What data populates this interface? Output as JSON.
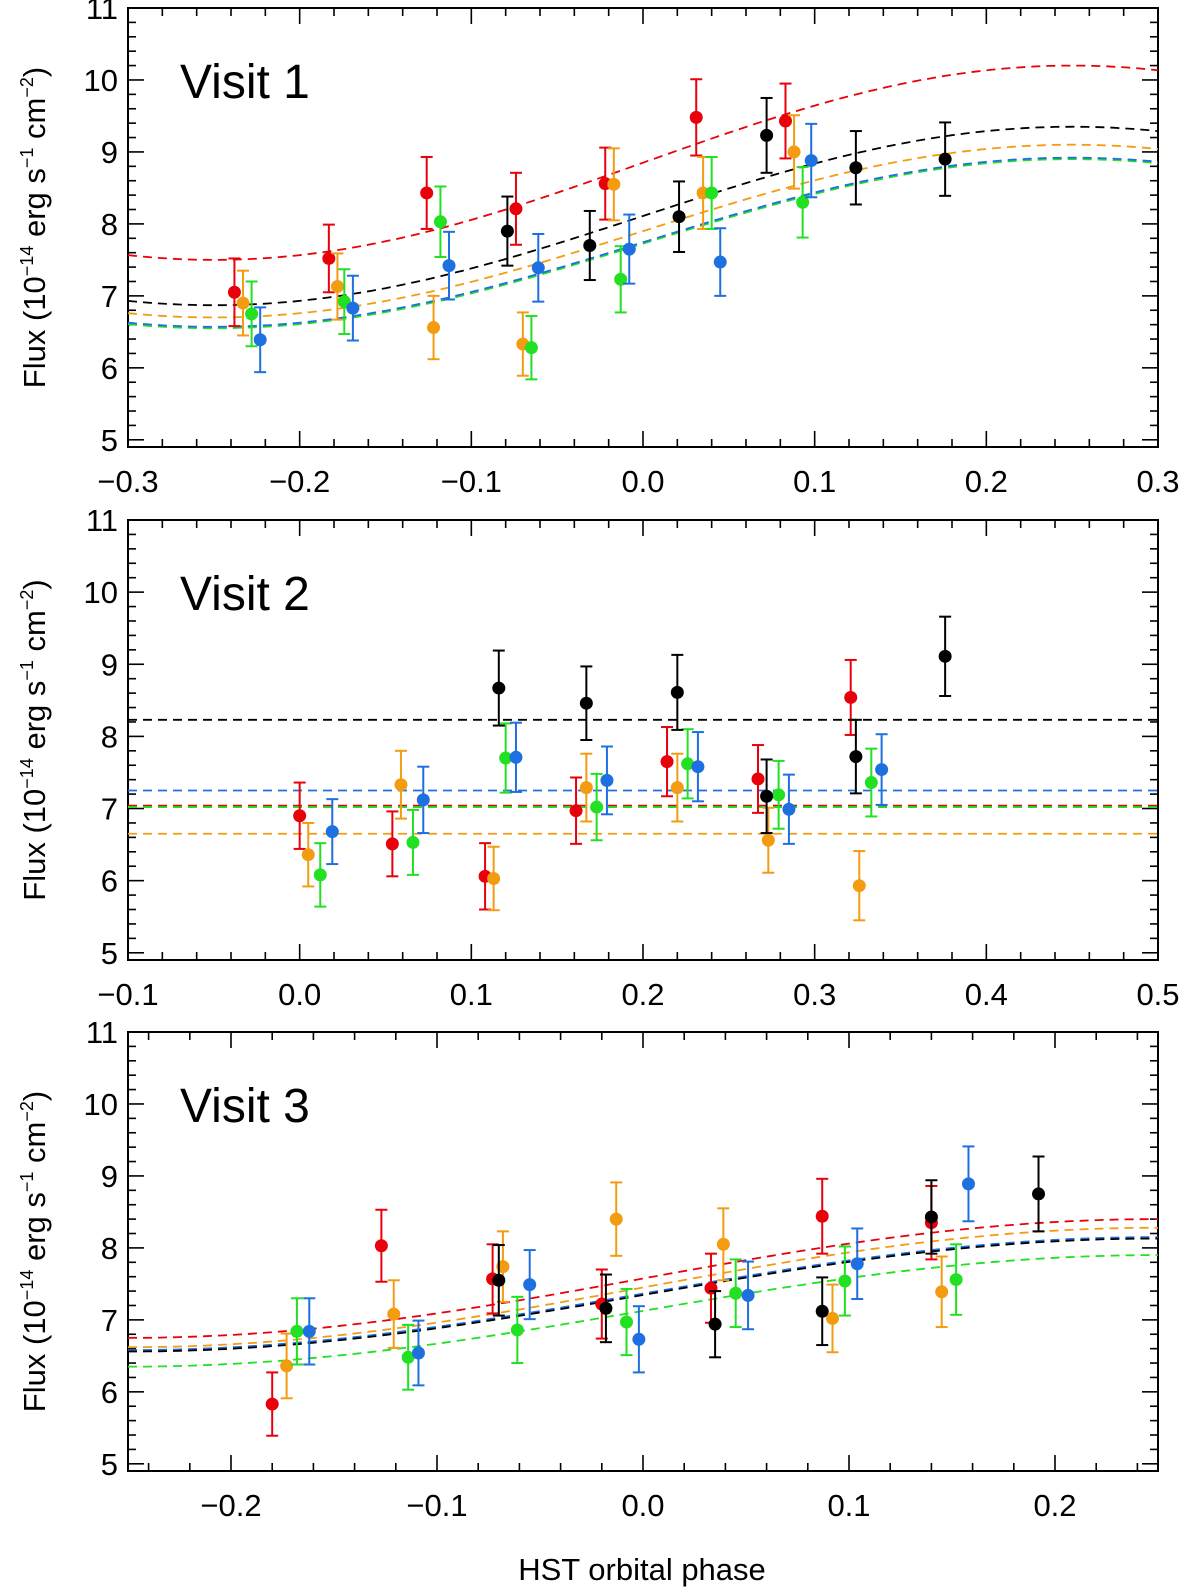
{
  "figure": {
    "xlabel": "HST orbital phase",
    "ylabel_main": "Flux (10",
    "ylabel_exp": "−14",
    "ylabel_units": " erg s",
    "ylabel_exp2": "−1",
    "ylabel_units2": " cm",
    "ylabel_exp3": "−2",
    "ylabel_close": ")"
  },
  "colors": {
    "red": "#e8000b",
    "orange": "#f39c12",
    "green": "#22e022",
    "blue": "#1e6fe0",
    "black": "#000000"
  },
  "chart_data": [
    {
      "type": "scatter",
      "title": "Visit 1",
      "xlabel": "",
      "ylabel": "Flux (10^-14 erg s^-1 cm^-2)",
      "xlim": [
        -0.3,
        0.3
      ],
      "ylim": [
        4.9,
        11.0
      ],
      "xticks": [
        "−0.3",
        "−0.2",
        "−0.1",
        "0.0",
        "0.1",
        "0.2",
        "0.3"
      ],
      "xtick_values": [
        -0.3,
        -0.2,
        -0.1,
        0.0,
        0.1,
        0.2,
        0.3
      ],
      "yticks": [
        "5",
        "6",
        "7",
        "8",
        "9",
        "10",
        "11"
      ],
      "ytick_values": [
        5,
        6,
        7,
        8,
        9,
        10,
        11
      ],
      "model": {
        "kind": "sine",
        "phase_center": -0.25,
        "period": 1.0
      },
      "series": [
        {
          "color": "red",
          "model": {
            "min": 7.5,
            "max": 10.2
          },
          "points": [
            {
              "x": -0.238,
              "y": 7.05,
              "err": 0.47
            },
            {
              "x": -0.183,
              "y": 7.52,
              "err": 0.47
            },
            {
              "x": -0.126,
              "y": 8.43,
              "err": 0.5
            },
            {
              "x": -0.074,
              "y": 8.21,
              "err": 0.5
            },
            {
              "x": -0.022,
              "y": 8.56,
              "err": 0.5
            },
            {
              "x": 0.031,
              "y": 9.48,
              "err": 0.53
            },
            {
              "x": 0.083,
              "y": 9.43,
              "err": 0.52
            }
          ]
        },
        {
          "color": "orange",
          "model": {
            "min": 6.7,
            "max": 9.1
          },
          "points": [
            {
              "x": -0.233,
              "y": 6.9,
              "err": 0.45
            },
            {
              "x": -0.178,
              "y": 7.13,
              "err": 0.46
            },
            {
              "x": -0.122,
              "y": 6.56,
              "err": 0.44
            },
            {
              "x": -0.07,
              "y": 6.33,
              "err": 0.44
            },
            {
              "x": -0.017,
              "y": 8.55,
              "err": 0.5
            },
            {
              "x": 0.035,
              "y": 8.43,
              "err": 0.5
            },
            {
              "x": 0.088,
              "y": 9.0,
              "err": 0.51
            }
          ]
        },
        {
          "color": "green",
          "model": {
            "min": 6.55,
            "max": 8.9
          },
          "points": [
            {
              "x": -0.228,
              "y": 6.75,
              "err": 0.45
            },
            {
              "x": -0.174,
              "y": 6.92,
              "err": 0.45
            },
            {
              "x": -0.118,
              "y": 8.03,
              "err": 0.49
            },
            {
              "x": -0.065,
              "y": 6.28,
              "err": 0.44
            },
            {
              "x": -0.013,
              "y": 7.23,
              "err": 0.46
            },
            {
              "x": 0.04,
              "y": 8.43,
              "err": 0.5
            },
            {
              "x": 0.093,
              "y": 8.3,
              "err": 0.49
            }
          ]
        },
        {
          "color": "blue",
          "model": {
            "min": 6.57,
            "max": 8.92
          },
          "points": [
            {
              "x": -0.223,
              "y": 6.39,
              "err": 0.45
            },
            {
              "x": -0.169,
              "y": 6.83,
              "err": 0.45
            },
            {
              "x": -0.113,
              "y": 7.42,
              "err": 0.47
            },
            {
              "x": -0.061,
              "y": 7.39,
              "err": 0.47
            },
            {
              "x": -0.008,
              "y": 7.65,
              "err": 0.48
            },
            {
              "x": 0.045,
              "y": 7.47,
              "err": 0.47
            },
            {
              "x": 0.098,
              "y": 8.88,
              "err": 0.51
            }
          ]
        },
        {
          "color": "black",
          "model": {
            "min": 6.87,
            "max": 9.35
          },
          "points": [
            {
              "x": -0.079,
              "y": 7.9,
              "err": 0.48
            },
            {
              "x": -0.031,
              "y": 7.7,
              "err": 0.48
            },
            {
              "x": 0.021,
              "y": 8.1,
              "err": 0.49
            },
            {
              "x": 0.072,
              "y": 9.23,
              "err": 0.52
            },
            {
              "x": 0.124,
              "y": 8.78,
              "err": 0.51
            },
            {
              "x": 0.176,
              "y": 8.9,
              "err": 0.51
            }
          ]
        }
      ]
    },
    {
      "type": "scatter",
      "title": "Visit 2",
      "xlabel": "",
      "ylabel": "Flux (10^-14 erg s^-1 cm^-2)",
      "xlim": [
        -0.1,
        0.5
      ],
      "ylim": [
        4.9,
        11.0
      ],
      "xticks": [
        "−0.1",
        "0.0",
        "0.1",
        "0.2",
        "0.3",
        "0.4",
        "0.5"
      ],
      "xtick_values": [
        -0.1,
        0.0,
        0.1,
        0.2,
        0.3,
        0.4,
        0.5
      ],
      "yticks": [
        "5",
        "6",
        "7",
        "8",
        "9",
        "10",
        "11"
      ],
      "ytick_values": [
        5,
        6,
        7,
        8,
        9,
        10,
        11
      ],
      "model": {
        "kind": "constant"
      },
      "series": [
        {
          "color": "red",
          "model": {
            "value": 7.04
          },
          "points": [
            {
              "x": 0.0,
              "y": 6.9,
              "err": 0.46
            },
            {
              "x": 0.054,
              "y": 6.51,
              "err": 0.45
            },
            {
              "x": 0.108,
              "y": 6.06,
              "err": 0.46
            },
            {
              "x": 0.161,
              "y": 6.97,
              "err": 0.46
            },
            {
              "x": 0.214,
              "y": 7.65,
              "err": 0.48
            },
            {
              "x": 0.267,
              "y": 7.41,
              "err": 0.47
            },
            {
              "x": 0.321,
              "y": 8.54,
              "err": 0.52
            }
          ]
        },
        {
          "color": "orange",
          "model": {
            "value": 6.65
          },
          "points": [
            {
              "x": 0.005,
              "y": 6.36,
              "err": 0.44
            },
            {
              "x": 0.059,
              "y": 7.33,
              "err": 0.47
            },
            {
              "x": 0.113,
              "y": 6.03,
              "err": 0.44
            },
            {
              "x": 0.167,
              "y": 7.29,
              "err": 0.47
            },
            {
              "x": 0.22,
              "y": 7.29,
              "err": 0.47
            },
            {
              "x": 0.273,
              "y": 6.56,
              "err": 0.45
            },
            {
              "x": 0.326,
              "y": 5.93,
              "err": 0.48
            }
          ]
        },
        {
          "color": "green",
          "model": {
            "value": 7.02
          },
          "points": [
            {
              "x": 0.012,
              "y": 6.08,
              "err": 0.44
            },
            {
              "x": 0.066,
              "y": 6.53,
              "err": 0.45
            },
            {
              "x": 0.12,
              "y": 7.7,
              "err": 0.48
            },
            {
              "x": 0.173,
              "y": 7.02,
              "err": 0.46
            },
            {
              "x": 0.226,
              "y": 7.62,
              "err": 0.48
            },
            {
              "x": 0.279,
              "y": 7.19,
              "err": 0.47
            },
            {
              "x": 0.333,
              "y": 7.36,
              "err": 0.47
            }
          ]
        },
        {
          "color": "blue",
          "model": {
            "value": 7.25
          },
          "points": [
            {
              "x": 0.019,
              "y": 6.68,
              "err": 0.45
            },
            {
              "x": 0.072,
              "y": 7.12,
              "err": 0.46
            },
            {
              "x": 0.126,
              "y": 7.71,
              "err": 0.48
            },
            {
              "x": 0.179,
              "y": 7.39,
              "err": 0.47
            },
            {
              "x": 0.232,
              "y": 7.58,
              "err": 0.48
            },
            {
              "x": 0.285,
              "y": 6.99,
              "err": 0.48
            },
            {
              "x": 0.339,
              "y": 7.54,
              "err": 0.49
            }
          ]
        },
        {
          "color": "black",
          "model": {
            "value": 8.23
          },
          "points": [
            {
              "x": 0.116,
              "y": 8.67,
              "err": 0.52
            },
            {
              "x": 0.167,
              "y": 8.46,
              "err": 0.51
            },
            {
              "x": 0.22,
              "y": 8.61,
              "err": 0.52
            },
            {
              "x": 0.272,
              "y": 7.17,
              "err": 0.51
            },
            {
              "x": 0.324,
              "y": 7.72,
              "err": 0.51
            },
            {
              "x": 0.376,
              "y": 9.11,
              "err": 0.55
            }
          ]
        }
      ]
    },
    {
      "type": "scatter",
      "title": "Visit 3",
      "xlabel": "HST orbital phase",
      "ylabel": "Flux (10^-14 erg s^-1 cm^-2)",
      "xlim": [
        -0.25,
        0.25
      ],
      "ylim": [
        4.9,
        11.0
      ],
      "xticks": [
        "−0.2",
        "−0.1",
        "0.0",
        "0.1",
        "0.2"
      ],
      "xtick_values": [
        -0.2,
        -0.1,
        0.0,
        0.1,
        0.2
      ],
      "yticks": [
        "5",
        "6",
        "7",
        "8",
        "9",
        "10",
        "11"
      ],
      "ytick_values": [
        5,
        6,
        7,
        8,
        9,
        10,
        11
      ],
      "model": {
        "kind": "sine",
        "phase_center": -0.25,
        "period": 1.0
      },
      "series": [
        {
          "color": "red",
          "model": {
            "min": 6.75,
            "max": 8.4
          },
          "points": [
            {
              "x": -0.18,
              "y": 5.83,
              "err": 0.44
            },
            {
              "x": -0.127,
              "y": 8.03,
              "err": 0.5
            },
            {
              "x": -0.073,
              "y": 7.57,
              "err": 0.48
            },
            {
              "x": -0.02,
              "y": 7.22,
              "err": 0.48
            },
            {
              "x": 0.033,
              "y": 7.44,
              "err": 0.48
            },
            {
              "x": 0.087,
              "y": 8.44,
              "err": 0.52
            },
            {
              "x": 0.14,
              "y": 8.35,
              "err": 0.51
            }
          ]
        },
        {
          "color": "orange",
          "model": {
            "min": 6.62,
            "max": 8.28
          },
          "points": [
            {
              "x": -0.173,
              "y": 6.36,
              "err": 0.45
            },
            {
              "x": -0.121,
              "y": 7.08,
              "err": 0.47
            },
            {
              "x": -0.068,
              "y": 7.74,
              "err": 0.49
            },
            {
              "x": -0.013,
              "y": 8.4,
              "err": 0.51
            },
            {
              "x": 0.039,
              "y": 8.05,
              "err": 0.5
            },
            {
              "x": 0.092,
              "y": 7.02,
              "err": 0.47
            },
            {
              "x": 0.145,
              "y": 7.39,
              "err": 0.49
            }
          ]
        },
        {
          "color": "green",
          "model": {
            "min": 6.35,
            "max": 7.9
          },
          "points": [
            {
              "x": -0.168,
              "y": 6.84,
              "err": 0.46
            },
            {
              "x": -0.114,
              "y": 6.48,
              "err": 0.45
            },
            {
              "x": -0.061,
              "y": 6.86,
              "err": 0.46
            },
            {
              "x": -0.008,
              "y": 6.97,
              "err": 0.46
            },
            {
              "x": 0.045,
              "y": 7.37,
              "err": 0.47
            },
            {
              "x": 0.098,
              "y": 7.54,
              "err": 0.48
            },
            {
              "x": 0.152,
              "y": 7.56,
              "err": 0.49
            }
          ]
        },
        {
          "color": "blue",
          "model": {
            "min": 6.58,
            "max": 8.15
          },
          "points": [
            {
              "x": -0.162,
              "y": 6.84,
              "err": 0.46
            },
            {
              "x": -0.109,
              "y": 6.54,
              "err": 0.45
            },
            {
              "x": -0.055,
              "y": 7.49,
              "err": 0.48
            },
            {
              "x": -0.002,
              "y": 6.73,
              "err": 0.46
            },
            {
              "x": 0.051,
              "y": 7.34,
              "err": 0.47
            },
            {
              "x": 0.104,
              "y": 7.78,
              "err": 0.49
            },
            {
              "x": 0.158,
              "y": 8.89,
              "err": 0.52
            }
          ]
        },
        {
          "color": "black",
          "model": {
            "min": 6.56,
            "max": 8.13
          },
          "points": [
            {
              "x": -0.07,
              "y": 7.55,
              "err": 0.49
            },
            {
              "x": -0.018,
              "y": 7.16,
              "err": 0.47
            },
            {
              "x": 0.035,
              "y": 6.94,
              "err": 0.46
            },
            {
              "x": 0.087,
              "y": 7.12,
              "err": 0.47
            },
            {
              "x": 0.14,
              "y": 8.43,
              "err": 0.51
            },
            {
              "x": 0.192,
              "y": 8.75,
              "err": 0.52
            }
          ]
        }
      ]
    }
  ]
}
